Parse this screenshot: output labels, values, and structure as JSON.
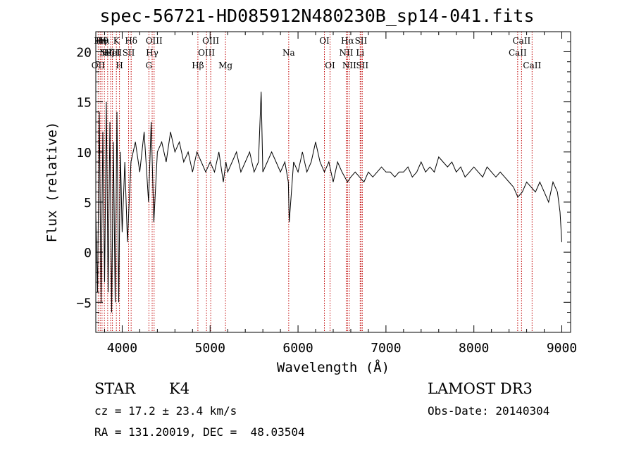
{
  "chart_data": {
    "type": "line",
    "title": "spec-56721-HD085912N480230B_sp14-041.fits",
    "xlabel": "Wavelength (Å)",
    "ylabel": "Flux (relative)",
    "xlim": [
      3700,
      9100
    ],
    "ylim": [
      -8,
      22
    ],
    "xticks": [
      4000,
      5000,
      6000,
      7000,
      8000,
      9000
    ],
    "yticks": [
      -5,
      0,
      5,
      10,
      15,
      20
    ],
    "grid": false,
    "series": [
      {
        "x": [
          3700,
          3720,
          3740,
          3760,
          3780,
          3800,
          3820,
          3840,
          3860,
          3880,
          3900,
          3920,
          3940,
          3960,
          3980,
          4000,
          4030,
          4060,
          4100,
          4150,
          4200,
          4250,
          4300,
          4330,
          4360,
          4400,
          4450,
          4500,
          4550,
          4600,
          4650,
          4700,
          4750,
          4800,
          4850,
          4900,
          4950,
          5000,
          5050,
          5100,
          5150,
          5180,
          5200,
          5250,
          5300,
          5350,
          5400,
          5450,
          5500,
          5550,
          5580,
          5600,
          5650,
          5700,
          5750,
          5800,
          5850,
          5890,
          5900,
          5950,
          6000,
          6050,
          6100,
          6150,
          6200,
          6250,
          6300,
          6350,
          6400,
          6450,
          6500,
          6563,
          6600,
          6650,
          6700,
          6750,
          6800,
          6850,
          6900,
          6950,
          7000,
          7050,
          7100,
          7150,
          7200,
          7250,
          7300,
          7350,
          7400,
          7450,
          7500,
          7550,
          7600,
          7650,
          7700,
          7750,
          7800,
          7850,
          7900,
          7950,
          8000,
          8050,
          8100,
          8150,
          8200,
          8250,
          8300,
          8350,
          8400,
          8450,
          8500,
          8550,
          8600,
          8650,
          8700,
          8750,
          8800,
          8850,
          8900,
          8950,
          8980,
          9000
        ],
        "y": [
          4,
          -4,
          14,
          -5,
          12,
          -3,
          15,
          -4,
          13,
          -6,
          11,
          -5,
          14,
          -5,
          10,
          2,
          9,
          1,
          9,
          11,
          8,
          12,
          5,
          13,
          3,
          10,
          11,
          9,
          12,
          10,
          11,
          9,
          10,
          8,
          10,
          9,
          8,
          9,
          8,
          10,
          7,
          9,
          8,
          9,
          10,
          8,
          9,
          10,
          8,
          9,
          16,
          8,
          9,
          10,
          9,
          8,
          9,
          7,
          3,
          9,
          8,
          10,
          8,
          9,
          11,
          9,
          8,
          9,
          7,
          9,
          8,
          7,
          7.5,
          8,
          7.5,
          7,
          8,
          7.5,
          8,
          8.5,
          8,
          8,
          7.5,
          8,
          8,
          8.5,
          7.5,
          8,
          9,
          8,
          8.5,
          8,
          9.5,
          9,
          8.5,
          9,
          8,
          8.5,
          7.5,
          8,
          8.5,
          8,
          7.5,
          8.5,
          8,
          7.5,
          8,
          7.5,
          7,
          6.5,
          5.5,
          6,
          7,
          6.5,
          6,
          7,
          6,
          5,
          7,
          6,
          4,
          1
        ]
      }
    ],
    "lines": [
      {
        "wl": 3727,
        "label": "OII",
        "row": 3
      },
      {
        "wl": 3750,
        "label": "Hη",
        "row": 1
      },
      {
        "wl": 3771,
        "label": "Hθ",
        "row": 1
      },
      {
        "wl": 3798,
        "label": "Hι",
        "row": 1
      },
      {
        "wl": 3835,
        "label": "Hζ",
        "row": 2
      },
      {
        "wl": 3869,
        "label": "NeIII",
        "row": 2
      },
      {
        "wl": 3889,
        "label": "HeI",
        "row": 2
      },
      {
        "wl": 3934,
        "label": "K",
        "row": 1
      },
      {
        "wl": 3969,
        "label": "H",
        "row": 3
      },
      {
        "wl": 4073,
        "label": "SII",
        "row": 2
      },
      {
        "wl": 4102,
        "label": "Hδ",
        "row": 1
      },
      {
        "wl": 4304,
        "label": "G",
        "row": 3
      },
      {
        "wl": 4341,
        "label": "Hγ",
        "row": 2
      },
      {
        "wl": 4363,
        "label": "OIII",
        "row": 1
      },
      {
        "wl": 4861,
        "label": "Hβ",
        "row": 3
      },
      {
        "wl": 4959,
        "label": "OIII",
        "row": 2
      },
      {
        "wl": 5007,
        "label": "OIII",
        "row": 1
      },
      {
        "wl": 5175,
        "label": "Mg",
        "row": 3
      },
      {
        "wl": 5894,
        "label": "Na",
        "row": 2
      },
      {
        "wl": 6300,
        "label": "OI",
        "row": 1
      },
      {
        "wl": 6364,
        "label": "OI",
        "row": 3
      },
      {
        "wl": 6548,
        "label": "NII",
        "row": 2
      },
      {
        "wl": 6563,
        "label": "Hα",
        "row": 1
      },
      {
        "wl": 6583,
        "label": "NII",
        "row": 3
      },
      {
        "wl": 6707,
        "label": "Li",
        "row": 2
      },
      {
        "wl": 6716,
        "label": "SII",
        "row": 1
      },
      {
        "wl": 6731,
        "label": "SII",
        "row": 3
      },
      {
        "wl": 8498,
        "label": "CaII",
        "row": 2
      },
      {
        "wl": 8542,
        "label": "CaII",
        "row": 1
      },
      {
        "wl": 8662,
        "label": "CaII",
        "row": 3
      }
    ]
  },
  "info": {
    "class": "STAR",
    "subclass": "K4",
    "survey": "LAMOST DR3",
    "cz": "cz = 17.2 ± 23.4 km/s",
    "obs_date": "Obs-Date: 20140304",
    "coords": "RA = 131.20019, DEC =  48.03504"
  }
}
